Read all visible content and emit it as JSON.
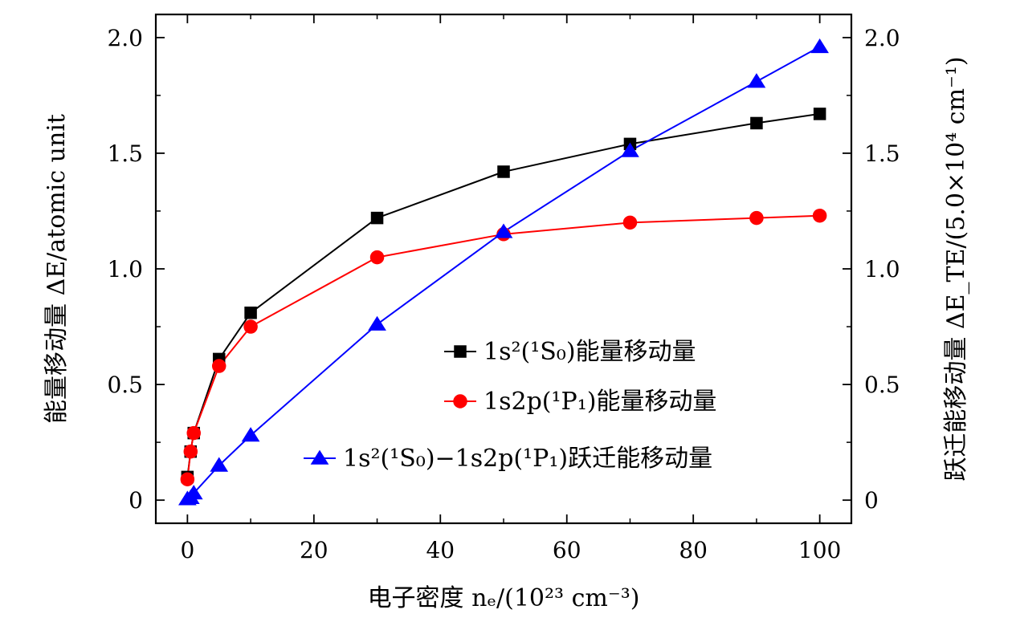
{
  "chart_data": {
    "type": "line",
    "x": [
      0,
      0.5,
      1,
      5,
      10,
      30,
      50,
      70,
      90,
      100
    ],
    "xlim": [
      -5,
      105
    ],
    "xticks": [
      0,
      20,
      40,
      60,
      80,
      100
    ],
    "xtick_labels": [
      "0",
      "20",
      "40",
      "60",
      "80",
      "100"
    ],
    "xlabel": "电子密度 nₑ/(10²³ cm⁻³)",
    "ylabel_left": "能量移动量 ΔE/atomic unit",
    "ylabel_right": "跃迁能移动量 ΔE_TE/(5.0×10⁴ cm⁻¹)",
    "ylim": [
      -0.1,
      2.1
    ],
    "yticks": [
      0,
      0.5,
      1.0,
      1.5,
      2.0
    ],
    "ytick_labels": [
      "0",
      "0.5",
      "1.0",
      "1.5",
      "2.0"
    ],
    "grid": false,
    "legend_position": "lower-right",
    "series": [
      {
        "name": "1s²(¹S₀)能量移动量",
        "color": "#000000",
        "marker": "square",
        "axis": "left",
        "values": [
          0.1,
          0.21,
          0.29,
          0.61,
          0.81,
          1.22,
          1.42,
          1.54,
          1.63,
          1.67
        ]
      },
      {
        "name": "1s2p(¹P₁)能量移动量",
        "color": "#ff0000",
        "marker": "circle",
        "axis": "left",
        "values": [
          0.09,
          0.21,
          0.29,
          0.58,
          0.75,
          1.05,
          1.15,
          1.2,
          1.22,
          1.23
        ]
      },
      {
        "name": "1s²(¹S₀)−1s2p(¹P₁)跃迁能移动量",
        "color": "#0000ff",
        "marker": "triangle",
        "axis": "right",
        "values": [
          0.005,
          0.01,
          0.03,
          0.15,
          0.28,
          0.76,
          1.16,
          1.51,
          1.81,
          1.96
        ]
      }
    ]
  }
}
